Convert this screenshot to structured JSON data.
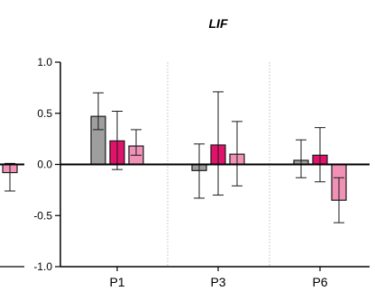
{
  "chart_data": {
    "type": "bar",
    "title": "LIF",
    "xlabel": "",
    "ylabel": "",
    "ylim": [
      -1.0,
      1.0
    ],
    "yticks": [
      -1.0,
      -0.5,
      0.0,
      0.5,
      1.0
    ],
    "ytick_labels": [
      "-1.0",
      "-0.5",
      "0.0",
      "0.5",
      "1.0"
    ],
    "categories": [
      "P1",
      "P3",
      "P6"
    ],
    "grid": false,
    "category_separators": "dotted",
    "series": [
      {
        "color": "#9e9e9e",
        "values": [
          0.47,
          -0.06,
          0.04
        ],
        "err_low": [
          0.34,
          -0.33,
          -0.13
        ],
        "err_high": [
          0.7,
          0.2,
          0.24
        ]
      },
      {
        "color": "#e0136b",
        "values": [
          0.23,
          0.19,
          0.09
        ],
        "err_low": [
          -0.05,
          -0.3,
          -0.17
        ],
        "err_high": [
          0.52,
          0.71,
          0.36
        ]
      },
      {
        "color": "#ef92b6",
        "values": [
          0.18,
          0.1,
          -0.35
        ],
        "err_low": [
          0.09,
          -0.21,
          -0.57
        ],
        "err_high": [
          0.34,
          0.42,
          -0.13
        ]
      }
    ],
    "partial_left_bar": {
      "color": "#ef92b6",
      "value": -0.08,
      "err_low": -0.26,
      "err_high": 0.01
    }
  }
}
